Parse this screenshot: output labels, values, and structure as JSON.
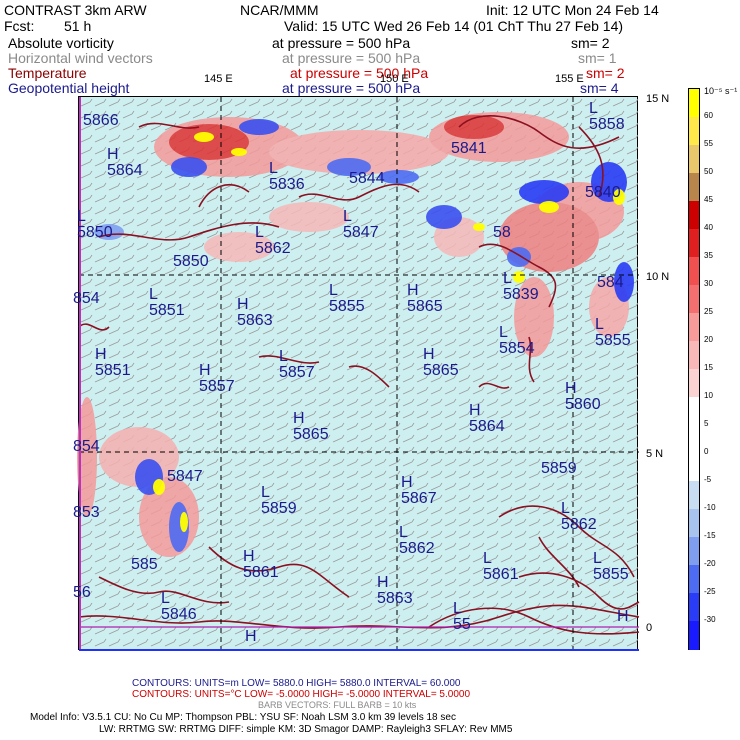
{
  "header": {
    "model": "CONTRAST   3km ARW",
    "org": "NCAR/MMM",
    "init": "Init: 12 UTC Mon 24 Feb 14",
    "fcst_label": "Fcst:",
    "fcst_value": "51 h",
    "valid": "Valid: 15 UTC Wed 26 Feb 14 (01 ChT Thu 27 Feb 14)"
  },
  "fields": [
    {
      "name": "Absolute vorticity",
      "level": "at pressure =  500 hPa",
      "sm": "sm= 2",
      "color": "#000000"
    },
    {
      "name": "Horizontal wind vectors",
      "level": "at pressure =  500 hPa",
      "sm": "sm= 1",
      "color": "#8a8a8a"
    },
    {
      "name": "Temperature",
      "level": "at pressure =  500 hPa",
      "sm": "sm= 2",
      "color": "#8b0000"
    },
    {
      "name": "Geopotential height",
      "level": "at pressure =  500 hPa",
      "sm": "sm= 4",
      "color": "#1a1a8c"
    }
  ],
  "axes": {
    "lon_labels": [
      "145 E",
      "150 E",
      "155 E"
    ],
    "lat_labels": [
      "15 N",
      "10 N",
      "5 N",
      "0"
    ]
  },
  "colorbar": {
    "unit": "10⁻⁵ s⁻¹",
    "labels": [
      "60",
      "55",
      "50",
      "45",
      "40",
      "35",
      "30",
      "25",
      "20",
      "15",
      "10",
      "5",
      "0",
      "-5",
      "-10",
      "-15",
      "-20",
      "-25",
      "-30"
    ],
    "colors": [
      "#ffff00",
      "#ffe94a",
      "#e8c86a",
      "#b8864c",
      "#cc0000",
      "#e02020",
      "#f05050",
      "#f47070",
      "#f79a9a",
      "#f9b8b8",
      "#fbd3d3",
      "#ffffff",
      "#ffffff",
      "#ffffff",
      "#c8dcf2",
      "#a8c4ee",
      "#7f9ef0",
      "#4e6cf2",
      "#2a3cf5",
      "#1a1aff"
    ]
  },
  "height_labels": [
    {
      "letter": "",
      "value": "5866"
    },
    {
      "letter": "H",
      "value": "5864"
    },
    {
      "letter": "L",
      "value": "5850"
    },
    {
      "letter": "",
      "value": "5850"
    },
    {
      "letter": "L",
      "value": "5836"
    },
    {
      "letter": "",
      "value": "5844"
    },
    {
      "letter": "L",
      "value": "5862"
    },
    {
      "letter": "L",
      "value": "5847"
    },
    {
      "letter": "",
      "value": "5841"
    },
    {
      "letter": "L",
      "value": "5858"
    },
    {
      "letter": "",
      "value": "5840"
    },
    {
      "letter": "",
      "value": "58"
    },
    {
      "letter": "",
      "value": "854"
    },
    {
      "letter": "L",
      "value": "5851"
    },
    {
      "letter": "H",
      "value": "5863"
    },
    {
      "letter": "L",
      "value": "5855"
    },
    {
      "letter": "H",
      "value": "5865"
    },
    {
      "letter": "L",
      "value": "5839"
    },
    {
      "letter": "",
      "value": "584"
    },
    {
      "letter": "L",
      "value": "5854"
    },
    {
      "letter": "L",
      "value": "5855"
    },
    {
      "letter": "H",
      "value": "5851"
    },
    {
      "letter": "H",
      "value": "5857"
    },
    {
      "letter": "L",
      "value": "5857"
    },
    {
      "letter": "H",
      "value": "5865"
    },
    {
      "letter": "H",
      "value": "5860"
    },
    {
      "letter": "H",
      "value": "5865"
    },
    {
      "letter": "H",
      "value": "5864"
    },
    {
      "letter": "",
      "value": "854"
    },
    {
      "letter": "",
      "value": "5847"
    },
    {
      "letter": "L",
      "value": "5859"
    },
    {
      "letter": "H",
      "value": "5867"
    },
    {
      "letter": "",
      "value": "5859"
    },
    {
      "letter": "",
      "value": "853"
    },
    {
      "letter": "L",
      "value": "5862"
    },
    {
      "letter": "L",
      "value": "5862"
    },
    {
      "letter": "",
      "value": "585"
    },
    {
      "letter": "H",
      "value": "5861"
    },
    {
      "letter": "L",
      "value": "5861"
    },
    {
      "letter": "L",
      "value": "5855"
    },
    {
      "letter": "",
      "value": "56"
    },
    {
      "letter": "L",
      "value": "5846"
    },
    {
      "letter": "H",
      "value": "5863"
    },
    {
      "letter": "L",
      "value": "55"
    },
    {
      "letter": "H",
      "value": ""
    },
    {
      "letter": "H",
      "value": ""
    }
  ],
  "footer": {
    "contours1": "CONTOURS:  UNITS=m   LOW=  5880.0       HIGH=  5880.0        INTERVAL=   60.000",
    "contours2": "CONTOURS:  UNITS=°C  LOW= -5.0000       HIGH= -5.0000        INTERVAL=   5.0000",
    "barb": "BARB VECTORS:  FULL BARB = 10 kts",
    "model_info": "Model Info: V3.5.1     CU: No Cu     MP: Thompson     PBL: YSU       SF: Noah LSM     3.0 km   39 levels    18 sec",
    "model_info2": "LW: RRTMG    SW: RRTMG   DIFF: simple KM: 3D Smagor DAMP: Rayleigh3   SFLAY: Rev MM5"
  }
}
